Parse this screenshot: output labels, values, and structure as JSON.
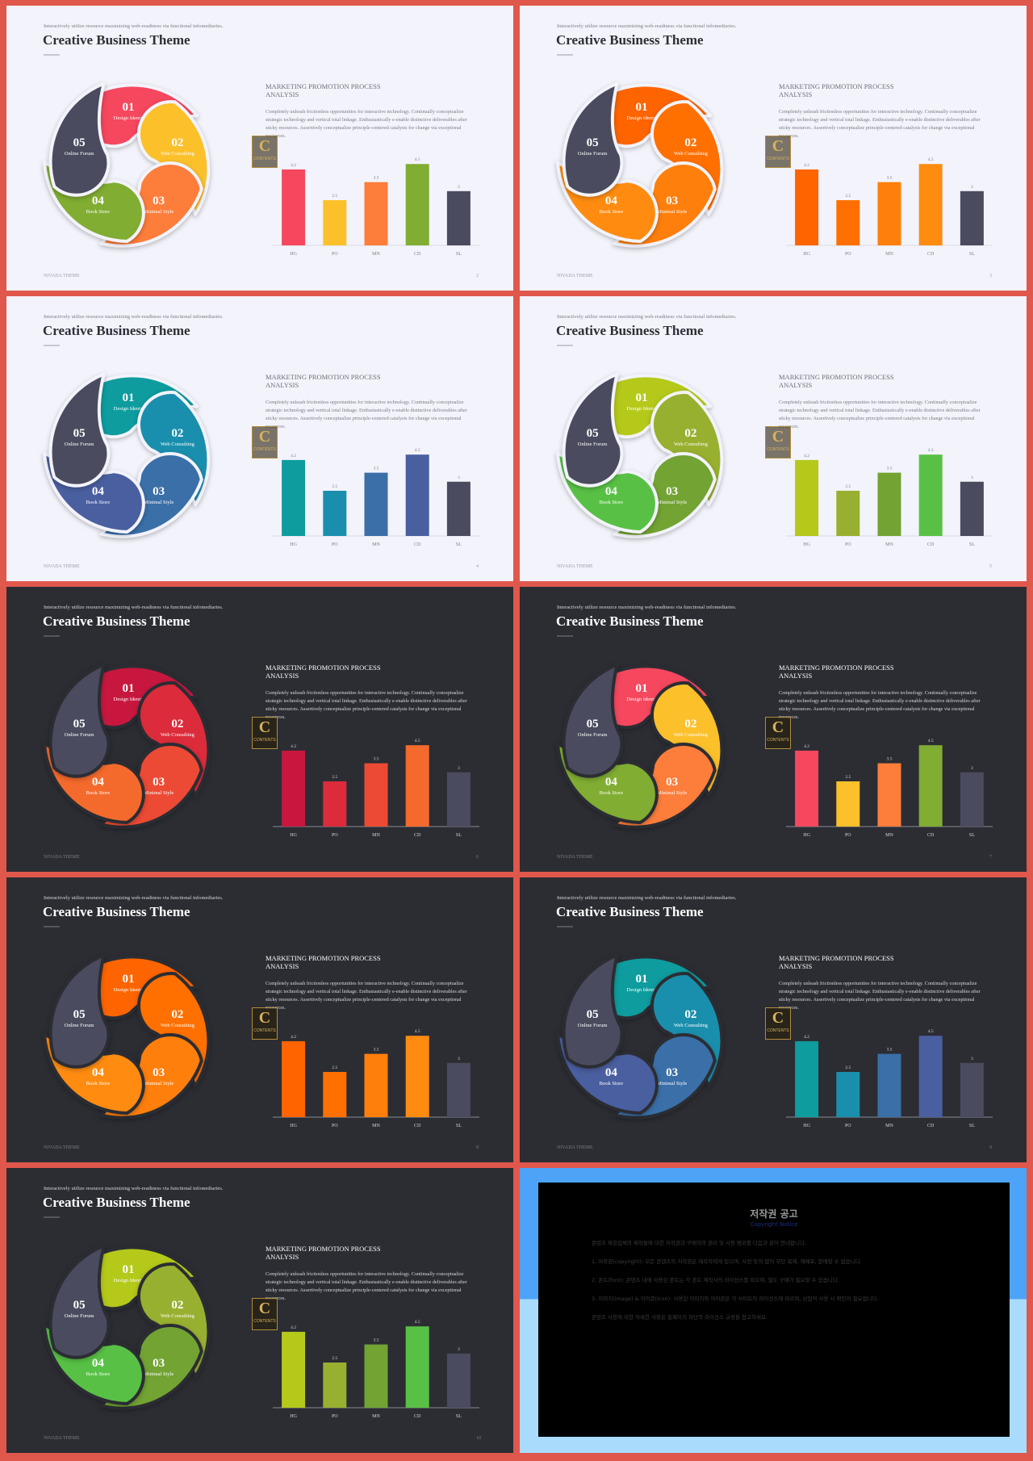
{
  "template": {
    "tagline": "Interactively utilize resource maximizing web-readiness via functional infomediaries.",
    "title": "Creative Business Theme",
    "heading": "MARKETING PROMOTION PROCESS ANALYSIS",
    "body": "Completely unleash frictionless opportunities for interactive technology. Continually conceptualize strategic technology and vertical total linkage. Enthusiastically e-enable distinctive deliverables after sticky resources. Assertively conceptualize principle-centered catalysts for change via exceptional resources.",
    "footer": "NIVADA THEME",
    "watermark": [
      "C",
      "CONTENTS"
    ],
    "petals": [
      {
        "number": "01",
        "label": "Design Identy"
      },
      {
        "number": "02",
        "label": "Web Consulting"
      },
      {
        "number": "03",
        "label": "Minimal Style"
      },
      {
        "number": "04",
        "label": "Book Store"
      },
      {
        "number": "05",
        "label": "Online Forum"
      }
    ]
  },
  "slides": [
    {
      "theme": "light",
      "page": 2
    },
    {
      "theme": "light",
      "page": 3
    },
    {
      "theme": "light",
      "page": 4
    },
    {
      "theme": "light",
      "page": 5
    },
    {
      "theme": "dark",
      "page": 6
    },
    {
      "theme": "dark",
      "page": 7
    },
    {
      "theme": "dark",
      "page": 8
    },
    {
      "theme": "dark",
      "page": 9
    },
    {
      "theme": "dark",
      "page": 10
    }
  ],
  "chart_data": [
    {
      "type": "bar",
      "categories": [
        "HG",
        "PO",
        "MN",
        "CD",
        "SL"
      ],
      "values": [
        4.2,
        2.5,
        3.5,
        4.5,
        3
      ],
      "ylim": [
        0,
        5
      ],
      "colors": [
        "#f5475e",
        "#fcc02a",
        "#fd7d3b",
        "#80ad32",
        "#4a4b5e"
      ]
    },
    {
      "type": "bar",
      "categories": [
        "HG",
        "PO",
        "MN",
        "CD",
        "SL"
      ],
      "values": [
        4.2,
        2.5,
        3.5,
        4.5,
        3
      ],
      "ylim": [
        0,
        5
      ],
      "colors": [
        "#fe6400",
        "#ff7000",
        "#ff7f0c",
        "#ff8c10",
        "#4a4b5e"
      ]
    },
    {
      "type": "bar",
      "categories": [
        "HG",
        "PO",
        "MN",
        "CD",
        "SL"
      ],
      "values": [
        4.2,
        2.5,
        3.5,
        4.5,
        3
      ],
      "ylim": [
        0,
        5
      ],
      "colors": [
        "#0e9c9e",
        "#1a8fad",
        "#3a6fa8",
        "#4a5fa0",
        "#4a4b5e"
      ]
    },
    {
      "type": "bar",
      "categories": [
        "HG",
        "PO",
        "MN",
        "CD",
        "SL"
      ],
      "values": [
        4.2,
        2.5,
        3.5,
        4.5,
        3
      ],
      "ylim": [
        0,
        5
      ],
      "colors": [
        "#b5c91a",
        "#98b02f",
        "#72a333",
        "#58c145",
        "#4a4b5e"
      ]
    },
    {
      "type": "bar",
      "categories": [
        "HG",
        "PO",
        "MN",
        "CD",
        "SL"
      ],
      "values": [
        4.2,
        2.5,
        3.5,
        4.5,
        3
      ],
      "ylim": [
        0,
        5
      ],
      "colors": [
        "#c8173e",
        "#dc2b3a",
        "#ec4a34",
        "#f46a2c",
        "#4a4b5e"
      ]
    },
    {
      "type": "bar",
      "categories": [
        "HG",
        "PO",
        "MN",
        "CD",
        "SL"
      ],
      "values": [
        4.2,
        2.5,
        3.5,
        4.5,
        3
      ],
      "ylim": [
        0,
        5
      ],
      "colors": [
        "#f5475e",
        "#fcc02a",
        "#fd7d3b",
        "#80ad32",
        "#4a4b5e"
      ]
    },
    {
      "type": "bar",
      "categories": [
        "HG",
        "PO",
        "MN",
        "CD",
        "SL"
      ],
      "values": [
        4.2,
        2.5,
        3.5,
        4.5,
        3
      ],
      "ylim": [
        0,
        5
      ],
      "colors": [
        "#fe6400",
        "#ff7000",
        "#ff7f0c",
        "#ff8c10",
        "#4a4b5e"
      ]
    },
    {
      "type": "bar",
      "categories": [
        "HG",
        "PO",
        "MN",
        "CD",
        "SL"
      ],
      "values": [
        4.2,
        2.5,
        3.5,
        4.5,
        3
      ],
      "ylim": [
        0,
        5
      ],
      "colors": [
        "#0e9c9e",
        "#1a8fad",
        "#3a6fa8",
        "#4a5fa0",
        "#4a4b5e"
      ]
    },
    {
      "type": "bar",
      "categories": [
        "HG",
        "PO",
        "MN",
        "CD",
        "SL"
      ],
      "values": [
        4.2,
        2.5,
        3.5,
        4.5,
        3
      ],
      "ylim": [
        0,
        5
      ],
      "colors": [
        "#b5c91a",
        "#98b02f",
        "#72a333",
        "#58c145",
        "#4a4b5e"
      ]
    }
  ],
  "notice": {
    "title": "저작권 공고",
    "subtitle": "Copyright Notice",
    "paragraphs": [
      "콘텐츠 제공업체의 제작물에 대한 저작권과 구매자의 권리 및 사용 범위를 다음과 같이 안내합니다.",
      "1. 저작권(copyright): 모든 콘텐츠의 저작권은 제작자에게 있으며, 사전 동의 없이 무단 복제, 재배포, 판매할 수 없습니다.",
      "2. 폰트(font): 콘텐츠 내에 사용된 폰트는 각 폰트 제작사의 라이선스를 따르며, 별도 구매가 필요할 수 있습니다.",
      "3. 이미지(image) & 아이콘(icon): 사용된 이미지와 아이콘은 각 사이트의 라이선스에 따르며, 상업적 사용 시 확인이 필요합니다.",
      "콘텐츠 사용에 대한 자세한 사항은 홈페이지 하단의 라이선스 규정을 참고하세요."
    ]
  }
}
